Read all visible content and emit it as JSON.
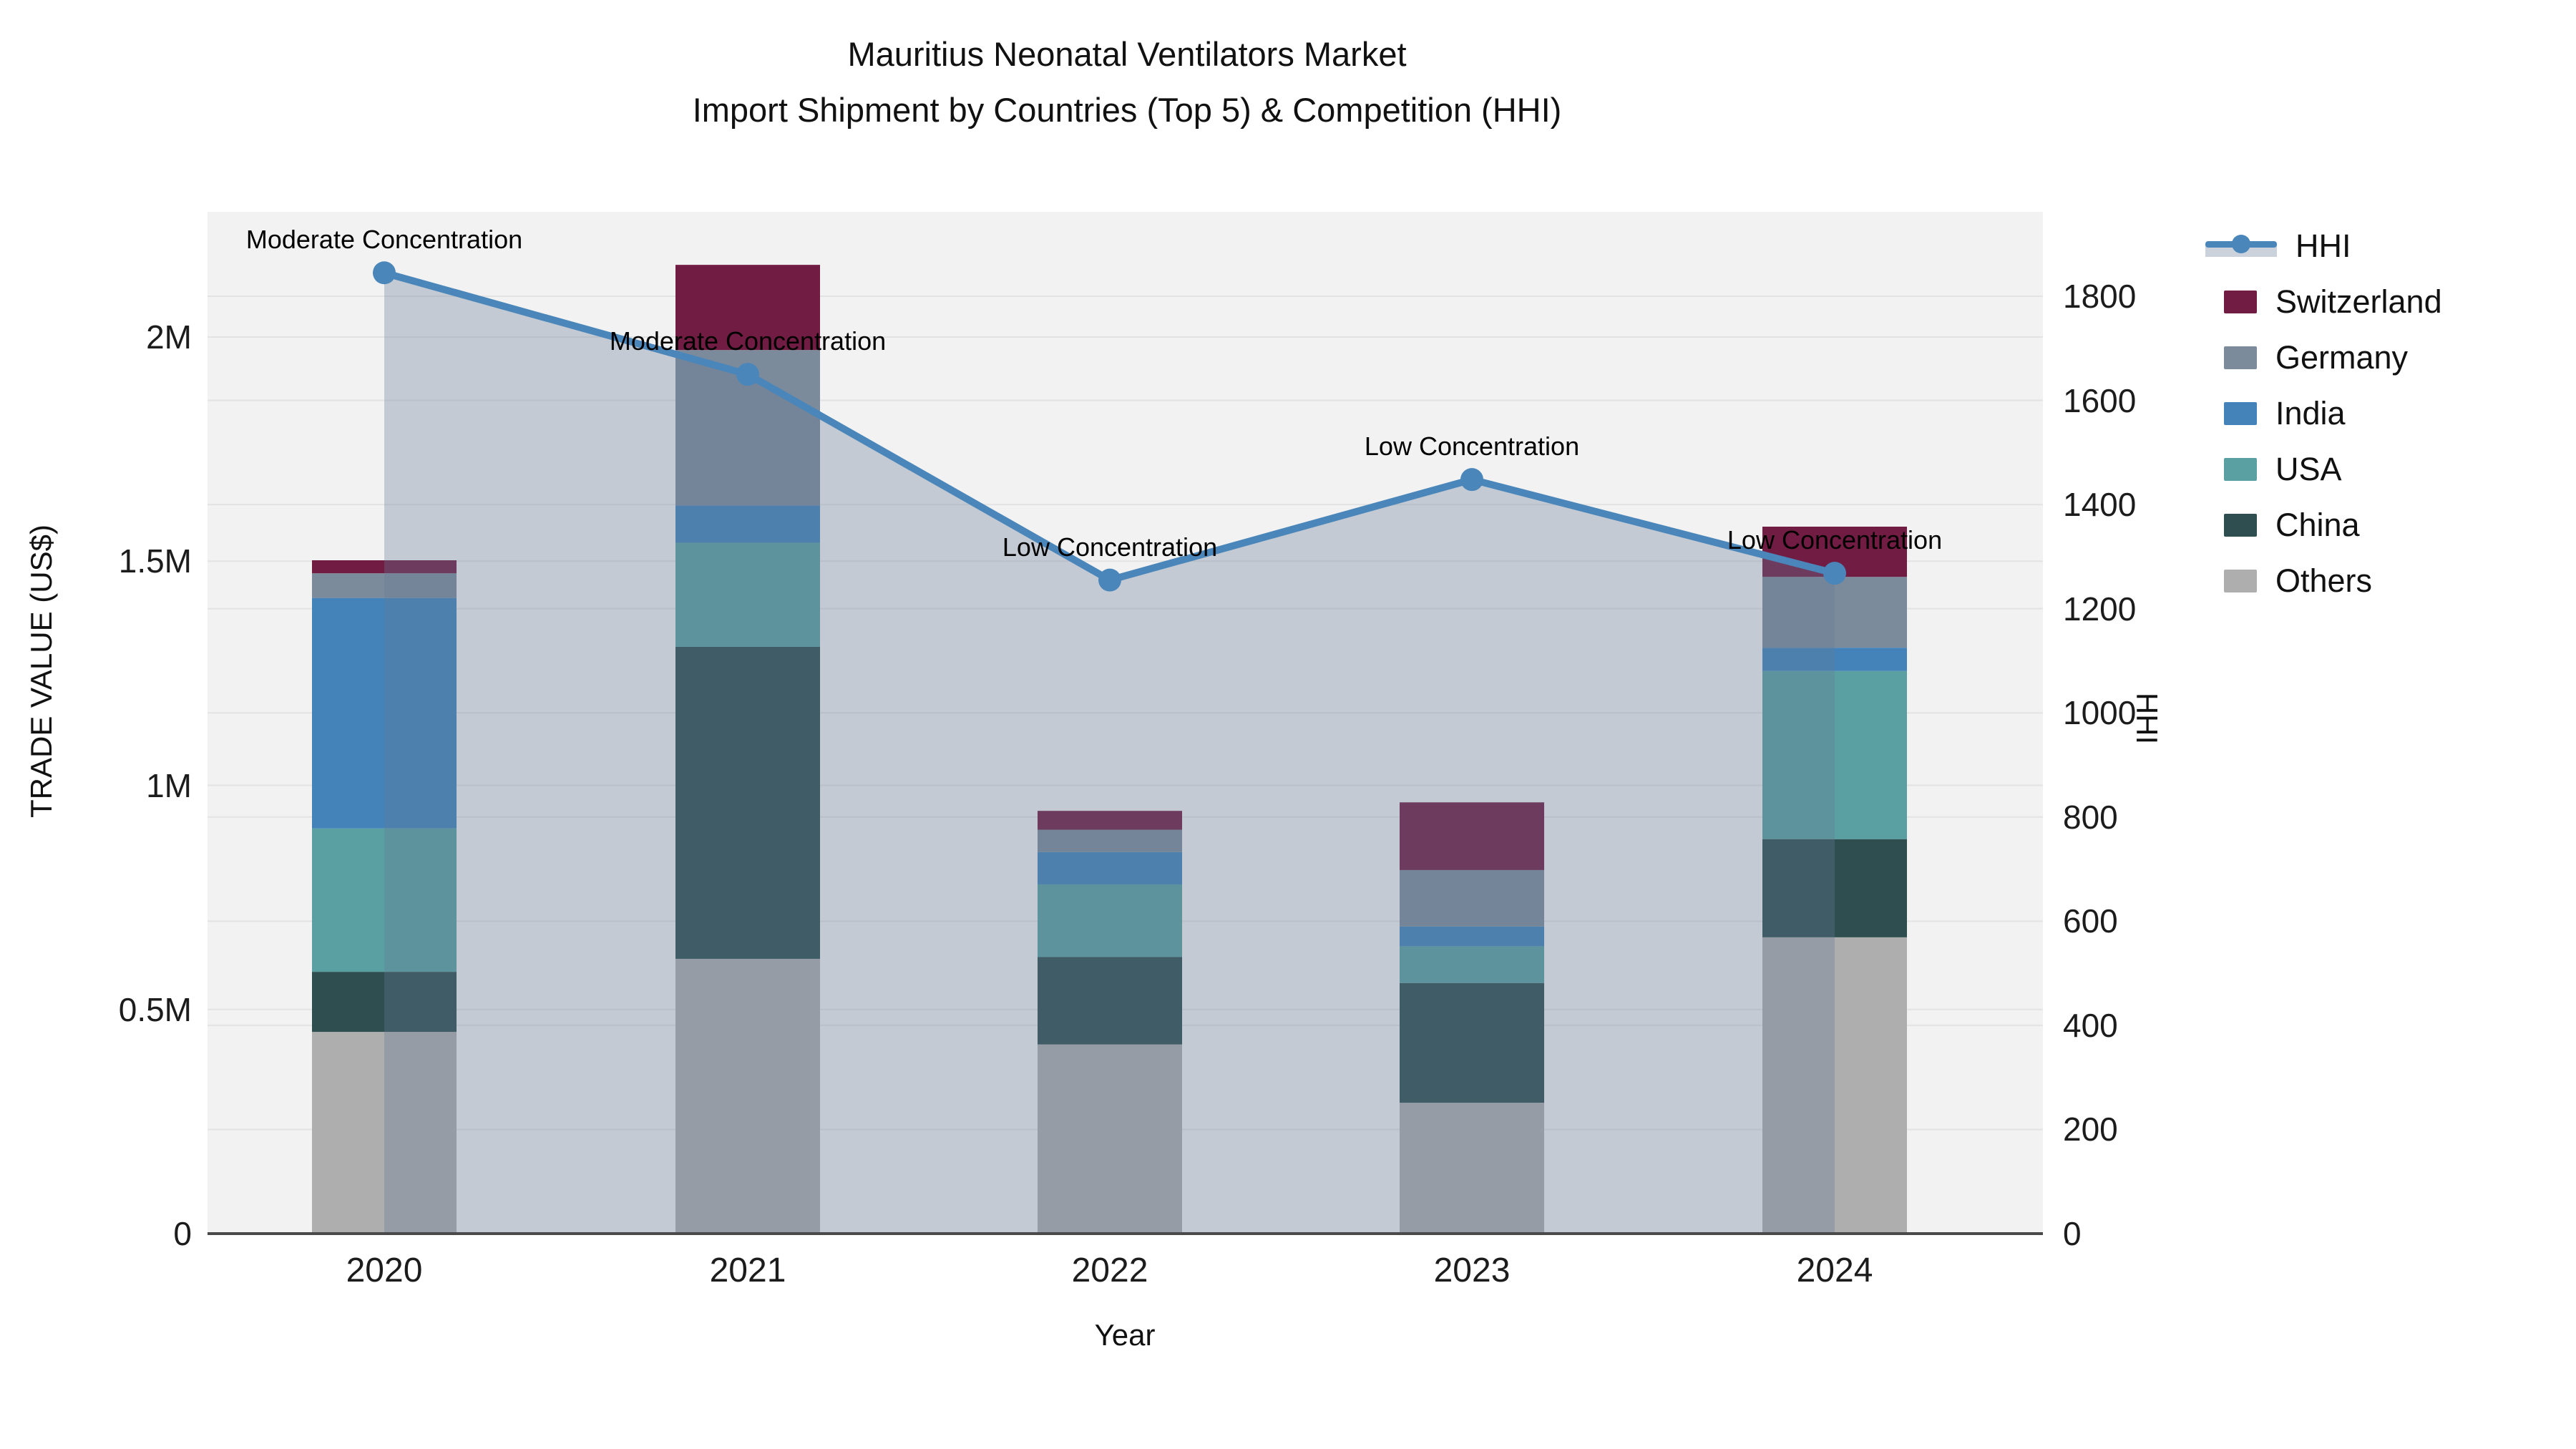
{
  "title": {
    "line1": "Mauritius Neonatal Ventilators Market",
    "line2": "Import Shipment by Countries (Top 5) & Competition (HHI)"
  },
  "axes": {
    "left": {
      "title": "TRADE VALUE (US$)",
      "ticks": [
        "0",
        "0.5M",
        "1M",
        "1.5M",
        "2M"
      ],
      "tick_values": [
        0,
        500000,
        1000000,
        1500000,
        2000000
      ],
      "range": [
        0,
        2280000
      ]
    },
    "right": {
      "title": "HHI",
      "ticks": [
        "0",
        "200",
        "400",
        "600",
        "800",
        "1000",
        "1200",
        "1400",
        "1600",
        "1800"
      ],
      "tick_values": [
        0,
        200,
        400,
        600,
        800,
        1000,
        1200,
        1400,
        1600,
        1800
      ],
      "range": [
        0,
        1963
      ]
    },
    "x": {
      "title": "Year",
      "ticks": [
        "2020",
        "2021",
        "2022",
        "2023",
        "2024"
      ]
    }
  },
  "legend": {
    "items": [
      {
        "label": "HHI",
        "type": "line",
        "color": "#4a86ba"
      },
      {
        "label": "Switzerland",
        "type": "swatch",
        "color": "#711d43"
      },
      {
        "label": "Germany",
        "type": "swatch",
        "color": "#7c8b9c"
      },
      {
        "label": "India",
        "type": "swatch",
        "color": "#4383ba"
      },
      {
        "label": "USA",
        "type": "swatch",
        "color": "#5aa0a2"
      },
      {
        "label": "China",
        "type": "swatch",
        "color": "#2f4e4f"
      },
      {
        "label": "Others",
        "type": "swatch",
        "color": "#aeaeae"
      }
    ]
  },
  "chart_data": {
    "type": "bar",
    "subtype": "stacked-bars-with-line",
    "categories": [
      "2020",
      "2021",
      "2022",
      "2023",
      "2024"
    ],
    "series": [
      {
        "name": "Others",
        "color": "#aeaeae",
        "values": [
          450000,
          613000,
          422000,
          292000,
          661000
        ]
      },
      {
        "name": "China",
        "color": "#2f4e4f",
        "values": [
          134000,
          696000,
          195000,
          267000,
          219000
        ]
      },
      {
        "name": "USA",
        "color": "#5aa0a2",
        "values": [
          320000,
          232000,
          162000,
          82000,
          375000
        ]
      },
      {
        "name": "India",
        "color": "#4383ba",
        "values": [
          514000,
          83000,
          72000,
          44000,
          52000
        ]
      },
      {
        "name": "Germany",
        "color": "#7c8b9c",
        "values": [
          55000,
          347000,
          50000,
          126000,
          158000
        ]
      },
      {
        "name": "Switzerland",
        "color": "#711d43",
        "values": [
          29000,
          190000,
          42000,
          151000,
          112000
        ]
      }
    ],
    "bar_totals": [
      1502000,
      2161000,
      943000,
      962000,
      1577000
    ],
    "line": {
      "name": "HHI",
      "color": "#4a86ba",
      "fill_color": "rgba(100,120,150,0.33)",
      "values": [
        1845,
        1650,
        1255,
        1448,
        1268
      ],
      "axis": "right"
    },
    "annotations": [
      {
        "text": "Moderate Concentration",
        "category": "2020"
      },
      {
        "text": "Moderate Concentration",
        "category": "2021"
      },
      {
        "text": "Low Concentration",
        "category": "2022"
      },
      {
        "text": "Low Concentration",
        "category": "2023"
      },
      {
        "text": "Low Concentration",
        "category": "2024"
      }
    ],
    "title": "Mauritius Neonatal Ventilators Market — Import Shipment by Countries (Top 5) & Competition (HHI)",
    "xlabel": "Year",
    "ylabel": "TRADE VALUE (US$)",
    "ylabel_right": "HHI",
    "grid": true,
    "legend_position": "right",
    "plot_bg": "#f2f2f2",
    "grid_color": "#e3e3e3"
  }
}
